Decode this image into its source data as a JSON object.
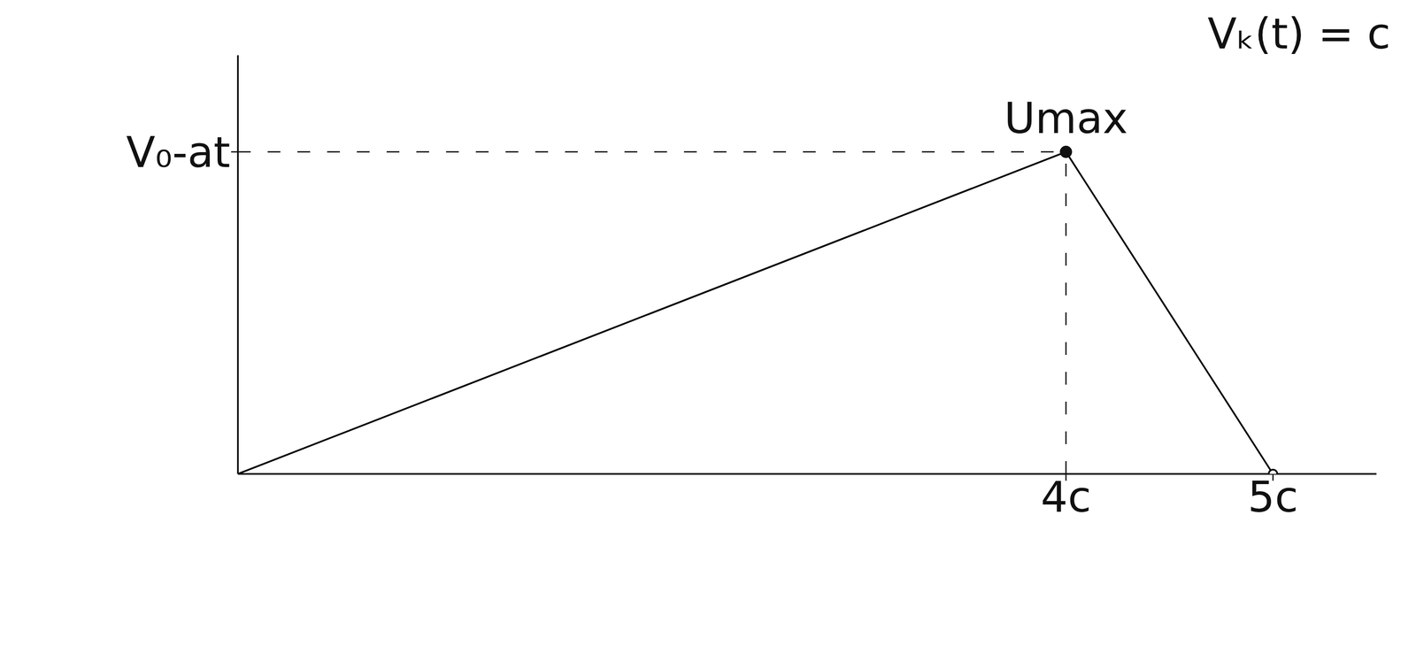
{
  "chart_data": {
    "type": "line",
    "title": "Vₖ(t) = c",
    "x": [
      0,
      4,
      5
    ],
    "values": [
      0,
      1,
      0
    ],
    "color": "#000000",
    "xlim": [
      0,
      5.5
    ],
    "xticks": [
      {
        "value": 4,
        "label": "4c"
      },
      {
        "value": 5,
        "label": "5c"
      }
    ],
    "ylim": [
      0,
      1.3
    ],
    "yticks": [
      {
        "value": 1,
        "label": "V₀-at"
      }
    ],
    "annotations": [
      {
        "text": "Umax",
        "x": 4,
        "y": 1
      }
    ],
    "grid": false
  }
}
